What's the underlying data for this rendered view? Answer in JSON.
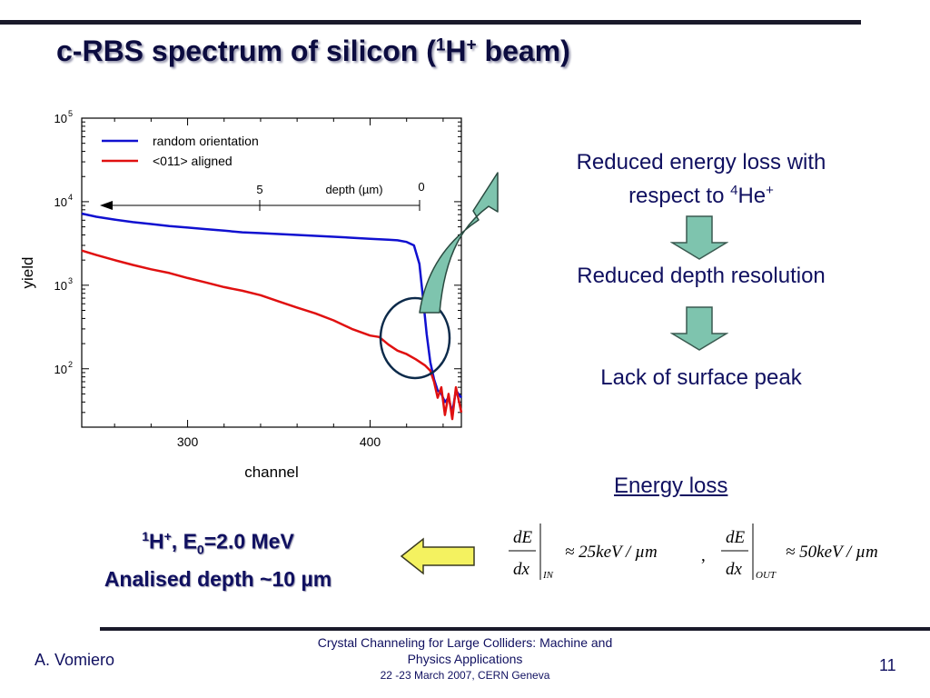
{
  "slide": {
    "title": {
      "prefix": "c-RBS spectrum of silicon (",
      "sup1": "1",
      "mid": "H",
      "sup2": "+",
      "suffix": " beam)"
    },
    "notes": {
      "line1a": "Reduced energy loss with",
      "line1b": "respect to ",
      "line1_sup": "4",
      "line1_he": "He",
      "line1_plus": "+",
      "line2": "Reduced depth resolution",
      "line3": "Lack of surface peak"
    },
    "energy_loss_heading": "Energy loss",
    "beam": {
      "sup1": "1",
      "h": "H",
      "sup2": "+",
      "e0": ", E",
      "sub0": "0",
      "value": "=2.0 MeV",
      "line2": "Analised depth ~10 µm"
    },
    "equations": {
      "numer": "dE",
      "denom": "dx",
      "sub_in": "IN",
      "val_in": "≈ 25keV / µm",
      "sep": ",",
      "sub_out": "OUT",
      "val_out": "≈ 50keV / µm"
    },
    "footer": {
      "author": "A. Vomiero",
      "conference_line1": "Crystal Channeling for Large Colliders: Machine and",
      "conference_line2": "Physics Applications",
      "conference_line3": "22 -23  March 2007, CERN Geneva",
      "page": "11"
    },
    "colors": {
      "title": "#0c0c40",
      "text": "#101060",
      "arrow_fill": "#7ec4ae",
      "yellow_arrow": "#f4f260",
      "circle": "#0c2a4a"
    }
  },
  "chart_data": {
    "type": "line",
    "xlabel": "channel",
    "ylabel": "yield",
    "yscale": "log",
    "xlim": [
      242,
      450
    ],
    "ylim": [
      20,
      100000
    ],
    "x_ticks": [
      300,
      400
    ],
    "y_ticks": [
      {
        "base": "10",
        "exp": "2"
      },
      {
        "base": "10",
        "exp": "3"
      },
      {
        "base": "10",
        "exp": "4"
      },
      {
        "base": "10",
        "exp": "5"
      }
    ],
    "legend": {
      "placement": "top-left"
    },
    "series": [
      {
        "name": "random orientation",
        "color": "#1010d0",
        "x": [
          242,
          250,
          260,
          270,
          280,
          290,
          300,
          310,
          320,
          330,
          340,
          350,
          360,
          370,
          380,
          390,
          400,
          410,
          415,
          420,
          424,
          427,
          429,
          431,
          433,
          435,
          437,
          439,
          441,
          443,
          445,
          447,
          450
        ],
        "y": [
          7200,
          6600,
          6100,
          5700,
          5400,
          5100,
          4900,
          4700,
          4500,
          4300,
          4200,
          4100,
          4000,
          3900,
          3800,
          3700,
          3600,
          3500,
          3450,
          3300,
          3000,
          1800,
          700,
          260,
          120,
          75,
          55,
          50,
          40,
          45,
          30,
          55,
          45
        ]
      },
      {
        "name": "<011> aligned",
        "color": "#e01010",
        "x": [
          242,
          250,
          260,
          270,
          280,
          290,
          300,
          310,
          320,
          330,
          340,
          350,
          360,
          370,
          380,
          390,
          400,
          405,
          410,
          415,
          420,
          425,
          430,
          433,
          435,
          437,
          439,
          441,
          443,
          445,
          447,
          450
        ],
        "y": [
          2600,
          2300,
          2000,
          1750,
          1550,
          1400,
          1220,
          1080,
          950,
          860,
          760,
          640,
          540,
          460,
          380,
          300,
          250,
          240,
          195,
          165,
          150,
          130,
          110,
          95,
          70,
          45,
          60,
          28,
          50,
          25,
          60,
          30
        ]
      }
    ],
    "annotation": {
      "label": "depth  (µm)",
      "marks": [
        "5",
        "0"
      ]
    }
  }
}
